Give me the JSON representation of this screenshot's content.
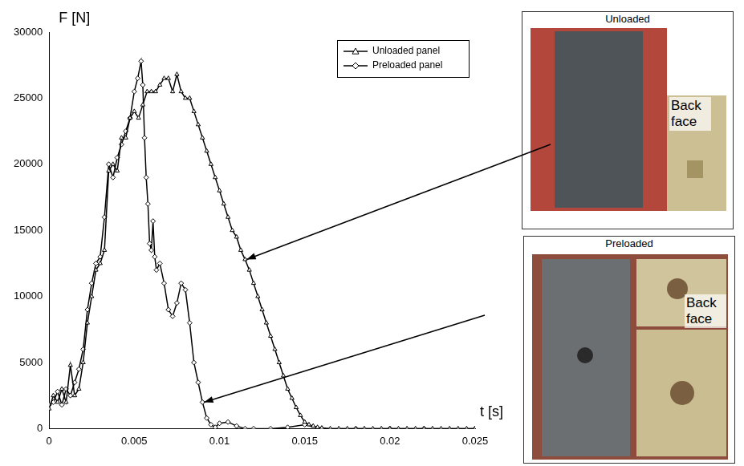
{
  "chart_data": {
    "type": "line",
    "x_label": "t [s]",
    "y_label": "F [N]",
    "xlim": [
      0,
      0.025
    ],
    "xticks": [
      0,
      0.005,
      0.01,
      0.015,
      0.02,
      0.025
    ],
    "ylim": [
      0,
      30000
    ],
    "yticks": [
      0,
      5000,
      10000,
      15000,
      20000,
      25000,
      30000
    ],
    "grid": false,
    "legend": "upper right",
    "series": [
      {
        "name": "Unloaded panel",
        "color": "#000000",
        "marker": "triangle",
        "x": [
          0,
          0.00025,
          0.0005,
          0.00075,
          0.001,
          0.00125,
          0.0015,
          0.00175,
          0.002,
          0.00225,
          0.0025,
          0.00275,
          0.003,
          0.00325,
          0.0035,
          0.00375,
          0.004,
          0.00425,
          0.0045,
          0.00475,
          0.005,
          0.00525,
          0.0055,
          0.00575,
          0.006,
          0.00625,
          0.0065,
          0.00675,
          0.007,
          0.00725,
          0.0075,
          0.00775,
          0.008,
          0.00825,
          0.0085,
          0.00875,
          0.009,
          0.00925,
          0.0095,
          0.00975,
          0.01,
          0.01025,
          0.0105,
          0.01075,
          0.011,
          0.01125,
          0.0115,
          0.01175,
          0.012,
          0.01225,
          0.0125,
          0.01275,
          0.013,
          0.01325,
          0.0135,
          0.01375,
          0.014,
          0.01425,
          0.0145,
          0.01475,
          0.015,
          0.01525,
          0.0155,
          0.01575,
          0.016,
          0.0165,
          0.017,
          0.0175,
          0.018,
          0.0185,
          0.019,
          0.0195,
          0.02,
          0.0205,
          0.021,
          0.0215,
          0.022,
          0.0225,
          0.023,
          0.0235,
          0.024,
          0.0245,
          0.025
        ],
        "values": [
          1500,
          2500,
          2000,
          3000,
          2000,
          4800,
          2500,
          3000,
          5000,
          8000,
          10000,
          12000,
          12500,
          13500,
          19500,
          20000,
          19500,
          22000,
          22000,
          23500,
          24000,
          23500,
          24500,
          25500,
          25500,
          25500,
          26000,
          26500,
          26500,
          25500,
          26800,
          25500,
          25000,
          25000,
          24000,
          23000,
          22000,
          21000,
          20000,
          19000,
          18000,
          17000,
          16000,
          15000,
          14500,
          13500,
          12800,
          12000,
          11000,
          10000,
          9000,
          8000,
          7000,
          6000,
          5000,
          4000,
          3000,
          2300,
          1600,
          1000,
          500,
          300,
          200,
          100,
          50,
          0,
          0,
          0,
          0,
          0,
          0,
          0,
          0,
          0,
          0,
          0,
          0,
          0,
          0,
          0,
          0,
          0,
          0
        ]
      },
      {
        "name": "Preloaded panel",
        "color": "#000000",
        "marker": "diamond",
        "x": [
          0,
          0.00025,
          0.0005,
          0.00075,
          0.001,
          0.00125,
          0.0015,
          0.00175,
          0.002,
          0.00225,
          0.0025,
          0.00275,
          0.003,
          0.00325,
          0.0035,
          0.00375,
          0.004,
          0.00425,
          0.0045,
          0.00475,
          0.005,
          0.0052,
          0.0054,
          0.0055,
          0.0056,
          0.0057,
          0.0058,
          0.0059,
          0.006,
          0.0061,
          0.0062,
          0.0063,
          0.0065,
          0.00675,
          0.007,
          0.00725,
          0.0075,
          0.00775,
          0.008,
          0.00825,
          0.0085,
          0.00875,
          0.009,
          0.00925,
          0.0095,
          0.00975,
          0.01,
          0.0105,
          0.011,
          0.0115,
          0.012,
          0.013,
          0.014,
          0.015,
          0.016,
          0.018,
          0.02,
          0.022,
          0.025
        ],
        "values": [
          1800,
          2000,
          2800,
          1800,
          3000,
          2500,
          3500,
          4500,
          6000,
          9000,
          11000,
          12500,
          13000,
          16000,
          20000,
          19000,
          20500,
          21500,
          22500,
          23500,
          25500,
          26500,
          27800,
          26000,
          22000,
          19000,
          17000,
          14000,
          13500,
          15700,
          13000,
          12000,
          12500,
          11000,
          9000,
          8500,
          9500,
          11000,
          10500,
          8000,
          5000,
          3500,
          2000,
          800,
          300,
          100,
          400,
          500,
          200,
          0,
          0,
          0,
          100,
          300,
          0,
          0,
          0,
          0,
          0
        ]
      }
    ]
  },
  "panels": [
    {
      "title": "Unloaded",
      "labels": [
        "Back face"
      ]
    },
    {
      "title": "Preloaded",
      "labels": [
        "Back face"
      ]
    }
  ]
}
